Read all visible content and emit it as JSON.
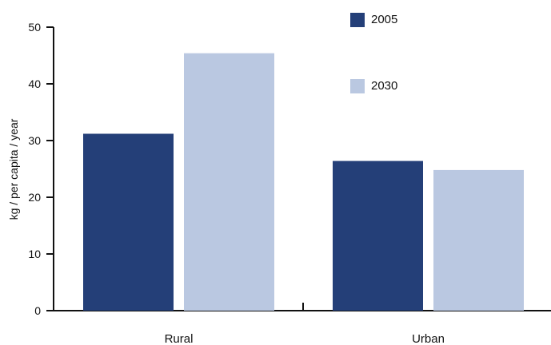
{
  "chart_data": {
    "type": "bar",
    "ylabel": "kg / per capita / year",
    "xlabel": "",
    "ylim": [
      0,
      50
    ],
    "yticks": [
      0,
      10,
      20,
      30,
      40,
      50
    ],
    "categories": [
      "Rural",
      "Urban"
    ],
    "series": [
      {
        "name": "2005",
        "values": [
          31.2,
          26.4
        ],
        "color": "#243f78"
      },
      {
        "name": "2030",
        "values": [
          45.4,
          24.8
        ],
        "color": "#bac8e1"
      }
    ],
    "legend_position": "top-right",
    "grid": false
  }
}
